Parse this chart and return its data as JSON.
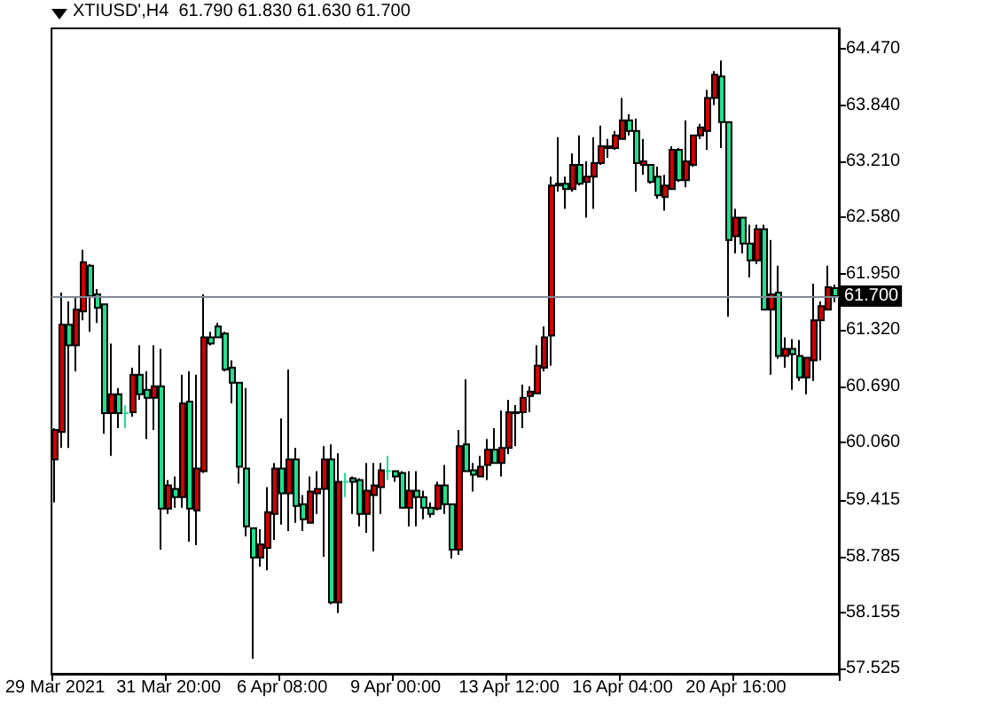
{
  "chart_data": {
    "type": "candlestick",
    "title": "XTIUSD',H4  61.790 61.830 61.630 61.700",
    "categories": [
      "29 Mar 2021",
      null,
      null,
      null,
      null,
      null,
      null,
      null,
      null,
      null,
      null,
      null,
      null,
      null,
      null,
      null,
      "31 Mar 20:00",
      null,
      null,
      null,
      null,
      null,
      null,
      null,
      null,
      null,
      null,
      null,
      null,
      null,
      null,
      null,
      "6 Apr 08:00",
      null,
      null,
      null,
      null,
      null,
      null,
      null,
      null,
      null,
      null,
      null,
      null,
      null,
      null,
      null,
      "9 Apr 00:00",
      null,
      null,
      null,
      null,
      null,
      null,
      null,
      null,
      null,
      null,
      null,
      null,
      null,
      null,
      null,
      "13 Apr 12:00",
      null,
      null,
      null,
      null,
      null,
      null,
      null,
      null,
      null,
      null,
      null,
      null,
      null,
      null,
      null,
      "16 Apr 04:00",
      null,
      null,
      null,
      null,
      null,
      null,
      null,
      null,
      null,
      null,
      null,
      null,
      null,
      null,
      null,
      "20 Apr 16:00",
      null,
      null,
      null,
      null,
      null,
      null,
      null,
      null,
      null,
      null,
      null,
      null,
      null,
      null
    ],
    "ohlc": [
      [
        59.87,
        60.22,
        59.39,
        60.2
      ],
      [
        60.18,
        61.74,
        60.0,
        61.38
      ],
      [
        61.38,
        61.64,
        60.0,
        61.15
      ],
      [
        61.15,
        61.68,
        60.86,
        61.55
      ],
      [
        61.53,
        62.22,
        61.43,
        62.08
      ],
      [
        62.04,
        62.06,
        61.3,
        61.7
      ],
      [
        61.72,
        61.78,
        61.4,
        61.57
      ],
      [
        61.61,
        61.61,
        60.16,
        60.39
      ],
      [
        60.39,
        61.17,
        59.91,
        60.6
      ],
      [
        60.6,
        60.67,
        60.22,
        60.39
      ],
      [
        60.39,
        60.48,
        60.22,
        60.39
      ],
      [
        60.4,
        60.9,
        60.35,
        60.82
      ],
      [
        60.82,
        61.15,
        60.54,
        60.6
      ],
      [
        60.65,
        60.86,
        60.1,
        60.56
      ],
      [
        60.56,
        61.15,
        60.2,
        60.69
      ],
      [
        60.69,
        61.11,
        58.86,
        59.32
      ],
      [
        59.32,
        59.64,
        59.26,
        59.58
      ],
      [
        59.54,
        59.68,
        59.33,
        59.45
      ],
      [
        59.45,
        60.82,
        59.33,
        60.5
      ],
      [
        60.52,
        60.86,
        58.95,
        59.32
      ],
      [
        59.3,
        60.82,
        58.91,
        59.77
      ],
      [
        59.74,
        61.72,
        59.72,
        61.24
      ],
      [
        61.24,
        61.3,
        61.15,
        61.17
      ],
      [
        61.36,
        61.4,
        61.24,
        61.24
      ],
      [
        61.28,
        61.3,
        60.86,
        60.88
      ],
      [
        60.9,
        60.98,
        60.5,
        60.73
      ],
      [
        60.73,
        60.73,
        59.6,
        59.79
      ],
      [
        59.77,
        60.67,
        59.01,
        59.12
      ],
      [
        59.1,
        59.1,
        57.64,
        58.77
      ],
      [
        58.77,
        59.09,
        58.67,
        58.92
      ],
      [
        58.88,
        59.56,
        58.63,
        59.28
      ],
      [
        59.26,
        59.83,
        58.97,
        59.77
      ],
      [
        59.77,
        60.33,
        59.14,
        59.49
      ],
      [
        59.49,
        60.88,
        59.07,
        59.87
      ],
      [
        59.87,
        60.0,
        59.16,
        59.35
      ],
      [
        59.37,
        59.47,
        59.07,
        59.2
      ],
      [
        59.16,
        59.68,
        59.16,
        59.51
      ],
      [
        59.49,
        59.74,
        59.26,
        59.54
      ],
      [
        59.54,
        60.02,
        58.78,
        59.87
      ],
      [
        59.87,
        60.04,
        58.25,
        58.27
      ],
      [
        58.27,
        59.94,
        58.15,
        59.62
      ],
      [
        59.62,
        59.72,
        59.45,
        59.62
      ],
      [
        59.66,
        59.68,
        59.26,
        59.62
      ],
      [
        59.64,
        59.66,
        59.12,
        59.26
      ],
      [
        59.26,
        59.83,
        59.05,
        59.52
      ],
      [
        59.47,
        59.83,
        58.84,
        59.58
      ],
      [
        59.56,
        59.83,
        59.26,
        59.75
      ],
      [
        59.74,
        59.91,
        59.64,
        59.74
      ],
      [
        59.74,
        59.75,
        59.62,
        59.68
      ],
      [
        59.72,
        59.74,
        59.33,
        59.33
      ],
      [
        59.33,
        59.74,
        59.12,
        59.52
      ],
      [
        59.52,
        59.74,
        59.12,
        59.45
      ],
      [
        59.45,
        59.52,
        59.2,
        59.33
      ],
      [
        59.33,
        59.39,
        59.22,
        59.26
      ],
      [
        59.32,
        59.62,
        59.3,
        59.58
      ],
      [
        59.58,
        59.81,
        59.26,
        59.37
      ],
      [
        59.37,
        59.37,
        58.76,
        58.86
      ],
      [
        58.86,
        60.2,
        58.8,
        60.02
      ],
      [
        60.04,
        60.77,
        59.74,
        59.74
      ],
      [
        59.75,
        59.83,
        59.51,
        59.7
      ],
      [
        59.68,
        59.91,
        59.68,
        59.79
      ],
      [
        59.81,
        60.1,
        59.64,
        59.98
      ],
      [
        59.98,
        60.22,
        59.83,
        59.83
      ],
      [
        59.83,
        60.42,
        59.68,
        60.0
      ],
      [
        60.0,
        60.54,
        59.93,
        60.4
      ],
      [
        60.39,
        60.48,
        60.02,
        60.4
      ],
      [
        60.4,
        60.71,
        60.22,
        60.56
      ],
      [
        60.58,
        60.69,
        60.4,
        60.63
      ],
      [
        60.61,
        61.15,
        60.6,
        60.92
      ],
      [
        60.9,
        61.36,
        60.86,
        61.24
      ],
      [
        61.26,
        63.04,
        60.92,
        62.94
      ],
      [
        62.94,
        63.48,
        62.87,
        62.96
      ],
      [
        62.96,
        63.04,
        62.68,
        62.9
      ],
      [
        62.9,
        63.3,
        62.87,
        63.17
      ],
      [
        63.17,
        63.5,
        62.94,
        62.96
      ],
      [
        62.98,
        63.21,
        62.58,
        63.04
      ],
      [
        63.04,
        63.48,
        62.68,
        63.19
      ],
      [
        63.19,
        63.61,
        63.17,
        63.38
      ],
      [
        63.36,
        63.46,
        63.25,
        63.38
      ],
      [
        63.36,
        63.55,
        63.34,
        63.5
      ],
      [
        63.46,
        63.92,
        63.46,
        63.67
      ],
      [
        63.67,
        63.74,
        63.5,
        63.55
      ],
      [
        63.55,
        63.69,
        62.87,
        63.19
      ],
      [
        63.17,
        63.46,
        63.06,
        63.21
      ],
      [
        63.17,
        63.17,
        62.96,
        62.98
      ],
      [
        63.04,
        63.15,
        62.79,
        62.83
      ],
      [
        62.81,
        63.06,
        62.66,
        62.94
      ],
      [
        62.9,
        63.38,
        62.89,
        63.34
      ],
      [
        63.34,
        63.36,
        62.98,
        63.0
      ],
      [
        63.0,
        63.67,
        62.92,
        63.21
      ],
      [
        63.17,
        63.5,
        63.15,
        63.5
      ],
      [
        63.5,
        63.63,
        63.46,
        63.59
      ],
      [
        63.55,
        64.01,
        63.34,
        63.92
      ],
      [
        63.92,
        64.22,
        63.84,
        64.18
      ],
      [
        64.16,
        64.34,
        63.36,
        63.65
      ],
      [
        63.65,
        63.65,
        61.47,
        62.33
      ],
      [
        62.37,
        62.68,
        62.18,
        62.58
      ],
      [
        62.58,
        62.58,
        62.18,
        62.29
      ],
      [
        62.29,
        62.5,
        61.91,
        62.1
      ],
      [
        62.1,
        62.5,
        62.06,
        62.45
      ],
      [
        62.45,
        62.5,
        61.55,
        61.55
      ],
      [
        61.55,
        62.33,
        60.82,
        61.72
      ],
      [
        61.74,
        62.04,
        61.0,
        61.03
      ],
      [
        61.03,
        61.24,
        60.9,
        61.11
      ],
      [
        61.11,
        61.22,
        60.65,
        61.05
      ],
      [
        61.03,
        61.21,
        60.75,
        60.79
      ],
      [
        60.79,
        61.01,
        60.6,
        61.01
      ],
      [
        60.98,
        61.84,
        60.75,
        61.43
      ],
      [
        61.43,
        61.64,
        60.98,
        61.59
      ],
      [
        61.55,
        62.04,
        61.55,
        61.8
      ],
      [
        61.79,
        61.83,
        61.63,
        61.7
      ]
    ],
    "colors": [
      "#d00000",
      "#d00000",
      "#20e090",
      "#d00000",
      "#d00000",
      "#20e090",
      "#20e090",
      "#20e090",
      "#d00000",
      "#20e090",
      "#20e090",
      "#d00000",
      "#20e090",
      "#20e090",
      "#d00000",
      "#20e090",
      "#d00000",
      "#20e090",
      "#d00000",
      "#20e090",
      "#d00000",
      "#d00000",
      "#20e090",
      "#20e090",
      "#20e090",
      "#20e090",
      "#20e090",
      "#20e090",
      "#20e090",
      "#d00000",
      "#d00000",
      "#d00000",
      "#20e090",
      "#d00000",
      "#20e090",
      "#20e090",
      "#d00000",
      "#d00000",
      "#d00000",
      "#20e090",
      "#d00000",
      "#20e090",
      "#20e090",
      "#20e090",
      "#d00000",
      "#d00000",
      "#d00000",
      "#20e090",
      "#20e090",
      "#20e090",
      "#d00000",
      "#20e090",
      "#20e090",
      "#20e090",
      "#d00000",
      "#20e090",
      "#20e090",
      "#d00000",
      "#20e090",
      "#20e090",
      "#d00000",
      "#d00000",
      "#20e090",
      "#d00000",
      "#d00000",
      "#d00000",
      "#d00000",
      "#d00000",
      "#d00000",
      "#d00000",
      "#d00000",
      "#d00000",
      "#20e090",
      "#d00000",
      "#20e090",
      "#d00000",
      "#d00000",
      "#d00000",
      "#d00000",
      "#d00000",
      "#d00000",
      "#20e090",
      "#20e090",
      "#d00000",
      "#20e090",
      "#20e090",
      "#d00000",
      "#d00000",
      "#20e090",
      "#d00000",
      "#d00000",
      "#d00000",
      "#d00000",
      "#d00000",
      "#20e090",
      "#20e090",
      "#d00000",
      "#20e090",
      "#20e090",
      "#d00000",
      "#20e090",
      "#d00000",
      "#20e090",
      "#d00000",
      "#20e090",
      "#20e090",
      "#d00000",
      "#d00000",
      "#d00000",
      "#d00000",
      "#20e090"
    ],
    "ylim": [
      57.47,
      64.7
    ],
    "yticks": [
      {
        "value": 64.47,
        "label": "64.470"
      },
      {
        "value": 63.84,
        "label": "63.840"
      },
      {
        "value": 63.21,
        "label": "63.210"
      },
      {
        "value": 62.58,
        "label": "62.580"
      },
      {
        "value": 61.95,
        "label": "61.950"
      },
      {
        "value": 61.32,
        "label": "61.320"
      },
      {
        "value": 60.69,
        "label": "60.690"
      },
      {
        "value": 60.06,
        "label": "60.060"
      },
      {
        "value": 59.415,
        "label": "59.415"
      },
      {
        "value": 58.785,
        "label": "58.785"
      },
      {
        "value": 58.155,
        "label": "58.155"
      },
      {
        "value": 57.525,
        "label": "57.525"
      }
    ],
    "ref_lines": [
      {
        "axis": "y",
        "value": 61.7,
        "label": "61.700",
        "color": "#808a96"
      }
    ]
  }
}
